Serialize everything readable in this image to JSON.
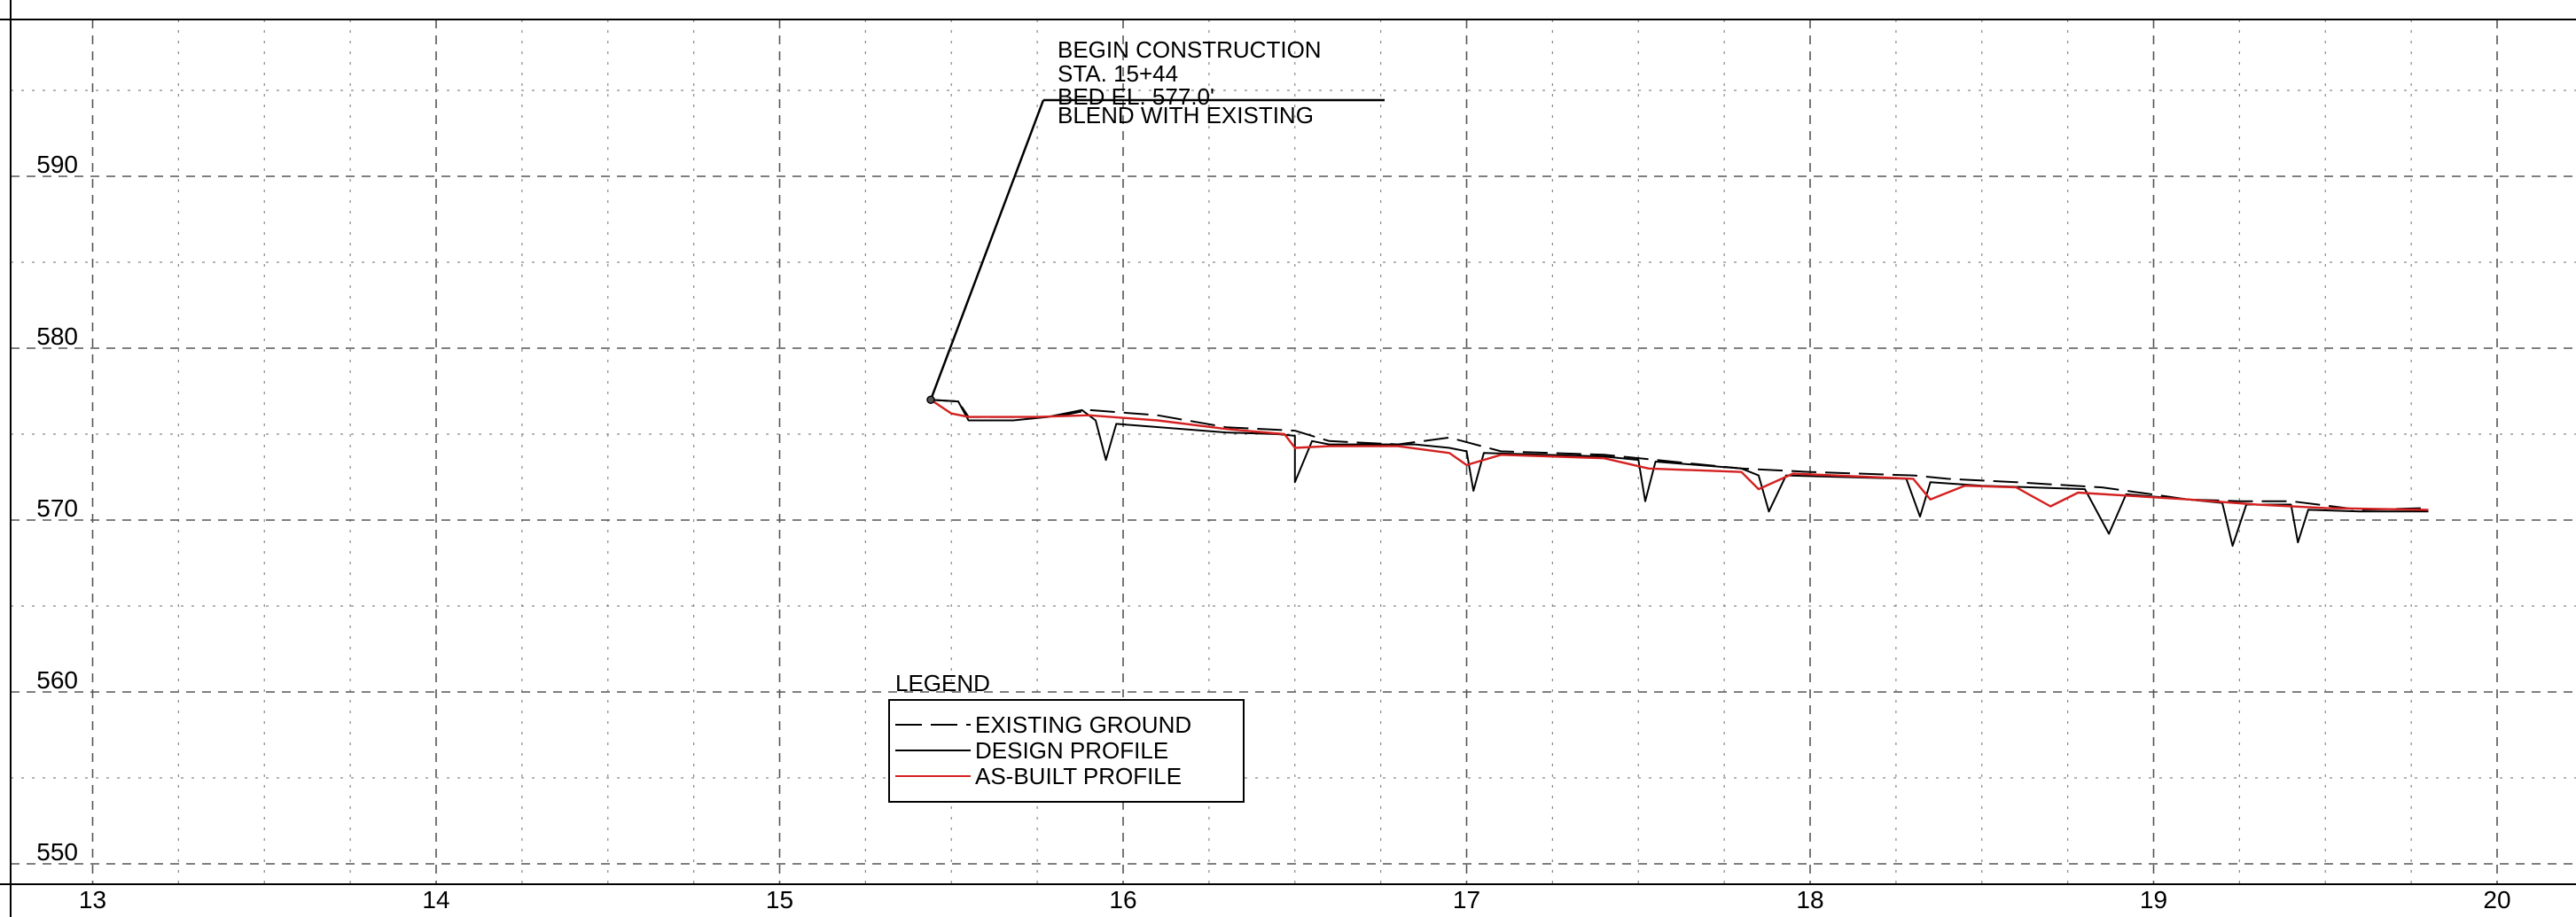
{
  "chart_data": {
    "type": "line",
    "title": "",
    "xlabel": "",
    "ylabel": "",
    "xlim": [
      13,
      20.2
    ],
    "ylim": [
      549,
      600
    ],
    "x_ticks": [
      13,
      14,
      15,
      16,
      17,
      18,
      19,
      20
    ],
    "x_tick_labels": [
      "13",
      "14",
      "15",
      "16",
      "17",
      "18",
      "19",
      "20"
    ],
    "y_ticks": [
      550,
      560,
      570,
      580,
      590
    ],
    "y_tick_labels": [
      "550",
      "560",
      "570",
      "580",
      "590"
    ],
    "x_minor_step": 0.25,
    "y_minor_step": 5,
    "grid": true,
    "series": [
      {
        "name": "EXISTING GROUND",
        "color": "#000000",
        "dash": "dashed",
        "points": [
          [
            15.44,
            577.0
          ],
          [
            15.52,
            576.9
          ],
          [
            15.55,
            576.0
          ],
          [
            15.8,
            576.0
          ],
          [
            15.9,
            576.4
          ],
          [
            16.1,
            576.1
          ],
          [
            16.3,
            575.4
          ],
          [
            16.5,
            575.2
          ],
          [
            16.6,
            574.6
          ],
          [
            16.8,
            574.4
          ],
          [
            16.95,
            574.8
          ],
          [
            17.1,
            574.0
          ],
          [
            17.4,
            573.8
          ],
          [
            17.55,
            573.5
          ],
          [
            17.8,
            573.0
          ],
          [
            18.0,
            572.8
          ],
          [
            18.3,
            572.6
          ],
          [
            18.4,
            572.4
          ],
          [
            18.6,
            572.2
          ],
          [
            18.85,
            571.9
          ],
          [
            19.1,
            571.2
          ],
          [
            19.25,
            571.1
          ],
          [
            19.4,
            571.1
          ],
          [
            19.6,
            570.6
          ],
          [
            19.8,
            570.7
          ]
        ]
      },
      {
        "name": "DESIGN PROFILE",
        "color": "#000000",
        "dash": "solid",
        "points": [
          [
            15.44,
            577.0
          ],
          [
            15.52,
            576.9
          ],
          [
            15.55,
            575.8
          ],
          [
            15.68,
            575.8
          ],
          [
            15.78,
            576.0
          ],
          [
            15.88,
            576.4
          ],
          [
            15.92,
            575.8
          ],
          [
            15.95,
            573.5
          ],
          [
            15.98,
            575.6
          ],
          [
            16.3,
            575.1
          ],
          [
            16.45,
            575.0
          ],
          [
            16.5,
            574.9
          ],
          [
            16.5,
            572.2
          ],
          [
            16.55,
            574.6
          ],
          [
            16.6,
            574.4
          ],
          [
            16.85,
            574.4
          ],
          [
            16.95,
            574.2
          ],
          [
            17.0,
            574.0
          ],
          [
            17.02,
            571.7
          ],
          [
            17.05,
            573.9
          ],
          [
            17.4,
            573.7
          ],
          [
            17.5,
            573.5
          ],
          [
            17.52,
            571.1
          ],
          [
            17.55,
            573.4
          ],
          [
            17.8,
            573.0
          ],
          [
            17.85,
            572.6
          ],
          [
            17.88,
            570.5
          ],
          [
            17.93,
            572.6
          ],
          [
            18.28,
            572.4
          ],
          [
            18.32,
            570.2
          ],
          [
            18.35,
            572.2
          ],
          [
            18.5,
            572.0
          ],
          [
            18.8,
            571.8
          ],
          [
            18.87,
            569.2
          ],
          [
            18.92,
            571.5
          ],
          [
            19.1,
            571.2
          ],
          [
            19.2,
            571.0
          ],
          [
            19.23,
            568.5
          ],
          [
            19.27,
            570.9
          ],
          [
            19.4,
            570.9
          ],
          [
            19.42,
            568.7
          ],
          [
            19.45,
            570.6
          ],
          [
            19.6,
            570.5
          ],
          [
            19.8,
            570.5
          ]
        ]
      },
      {
        "name": "AS-BUILT PROFILE",
        "color": "#d42020",
        "dash": "solid",
        "points": [
          [
            15.44,
            577.0
          ],
          [
            15.5,
            576.2
          ],
          [
            15.55,
            576.0
          ],
          [
            15.75,
            576.0
          ],
          [
            15.9,
            576.1
          ],
          [
            16.1,
            575.8
          ],
          [
            16.3,
            575.3
          ],
          [
            16.47,
            575.0
          ],
          [
            16.5,
            574.2
          ],
          [
            16.6,
            574.3
          ],
          [
            16.8,
            574.3
          ],
          [
            16.95,
            573.9
          ],
          [
            17.0,
            573.2
          ],
          [
            17.1,
            573.8
          ],
          [
            17.4,
            573.6
          ],
          [
            17.53,
            573.0
          ],
          [
            17.8,
            572.8
          ],
          [
            17.85,
            571.8
          ],
          [
            17.95,
            572.7
          ],
          [
            18.3,
            572.4
          ],
          [
            18.35,
            571.2
          ],
          [
            18.45,
            572.0
          ],
          [
            18.6,
            571.9
          ],
          [
            18.7,
            570.8
          ],
          [
            18.78,
            571.6
          ],
          [
            19.1,
            571.2
          ],
          [
            19.3,
            570.9
          ],
          [
            19.5,
            570.7
          ],
          [
            19.8,
            570.6
          ]
        ]
      }
    ],
    "annotations": {
      "callout_lines": [
        "BEGIN CONSTRUCTION",
        "STA. 15+44",
        "BED EL. 577.0'",
        "BLEND WITH EXISTING"
      ],
      "anchor": [
        15.44,
        577.0
      ]
    },
    "legend": {
      "title": "LEGEND",
      "placement": "bottom-center",
      "entries": [
        "EXISTING GROUND",
        "DESIGN PROFILE",
        "AS-BUILT PROFILE"
      ]
    }
  }
}
